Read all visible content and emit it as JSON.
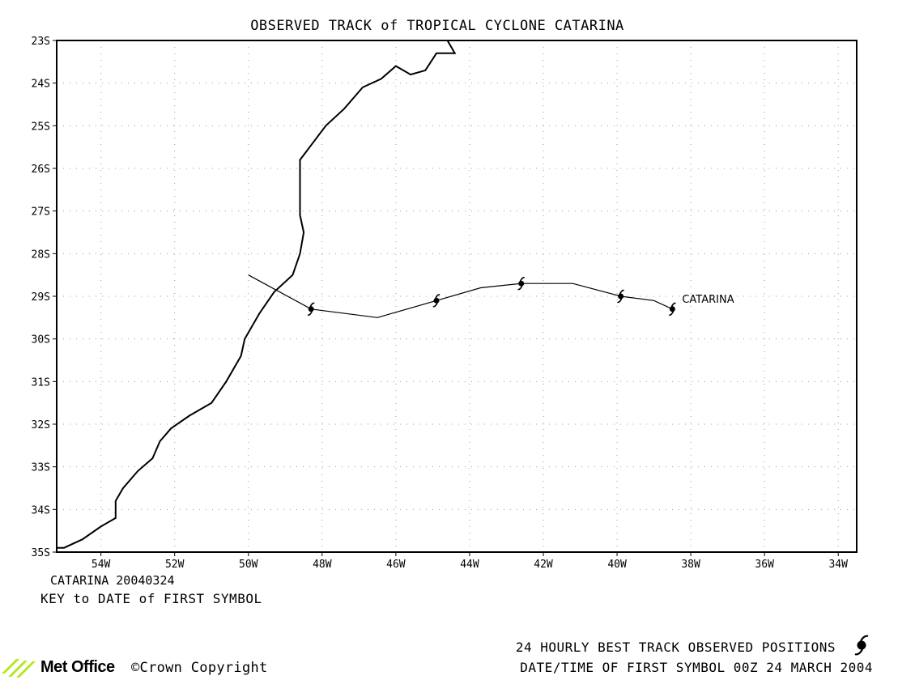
{
  "title": "OBSERVED TRACK of TROPICAL CYCLONE CATARINA",
  "lat_labels": [
    "23S",
    "24S",
    "25S",
    "26S",
    "27S",
    "28S",
    "29S",
    "30S",
    "31S",
    "32S",
    "33S",
    "34S",
    "35S"
  ],
  "lon_labels": [
    "54W",
    "52W",
    "50W",
    "48W",
    "46W",
    "44W",
    "42W",
    "40W",
    "38W",
    "36W",
    "34W"
  ],
  "storm_label": "CATARINA",
  "key_line1": "CATARINA 20040324",
  "key_line2": "KEY to DATE of FIRST SYMBOL",
  "footer_line1": "24 HOURLY BEST TRACK OBSERVED POSITIONS",
  "footer_line2": "DATE/TIME OF FIRST SYMBOL 00Z 24 MARCH 2004",
  "logo_text": "Met Office",
  "copyright_text": "©Crown Copyright",
  "map_extent": {
    "lon_min": -55.2,
    "lon_max": -33.5,
    "lat_min": -35,
    "lat_max": -23
  },
  "track": [
    [
      -50.0,
      -28.5
    ],
    [
      -48.3,
      -29.3
    ],
    [
      -46.5,
      -29.5
    ],
    [
      -44.9,
      -29.1
    ],
    [
      -43.7,
      -28.8
    ],
    [
      -42.6,
      -28.7
    ],
    [
      -41.2,
      -28.7
    ],
    [
      -39.9,
      -29.0
    ],
    [
      -39.0,
      -29.1
    ],
    [
      -38.5,
      -29.3
    ]
  ],
  "daily_positions": [
    [
      -48.3,
      -29.3
    ],
    [
      -44.9,
      -29.1
    ],
    [
      -42.6,
      -28.7
    ],
    [
      -39.9,
      -29.0
    ],
    [
      -38.5,
      -29.3
    ]
  ],
  "coastline": [
    [
      -44.6,
      -23.0
    ],
    [
      -44.4,
      -23.3
    ],
    [
      -44.9,
      -23.3
    ],
    [
      -45.2,
      -23.7
    ],
    [
      -45.6,
      -23.8
    ],
    [
      -46.0,
      -23.6
    ],
    [
      -46.4,
      -23.9
    ],
    [
      -46.9,
      -24.1
    ],
    [
      -47.4,
      -24.6
    ],
    [
      -47.9,
      -25.0
    ],
    [
      -48.6,
      -25.8
    ],
    [
      -48.6,
      -26.6
    ],
    [
      -48.6,
      -27.1
    ],
    [
      -48.5,
      -27.5
    ],
    [
      -48.6,
      -28.0
    ],
    [
      -48.8,
      -28.5
    ],
    [
      -49.3,
      -28.9
    ],
    [
      -49.7,
      -29.4
    ],
    [
      -50.1,
      -30.0
    ],
    [
      -50.2,
      -30.4
    ],
    [
      -50.6,
      -31.0
    ],
    [
      -51.0,
      -31.5
    ],
    [
      -51.6,
      -31.8
    ],
    [
      -52.1,
      -32.1
    ],
    [
      -52.4,
      -32.4
    ],
    [
      -52.6,
      -32.8
    ],
    [
      -53.0,
      -33.1
    ],
    [
      -53.4,
      -33.5
    ],
    [
      -53.6,
      -33.8
    ],
    [
      -53.6,
      -34.2
    ],
    [
      -54.0,
      -34.4
    ],
    [
      -54.5,
      -34.7
    ],
    [
      -55.0,
      -34.9
    ],
    [
      -55.2,
      -34.9
    ]
  ]
}
